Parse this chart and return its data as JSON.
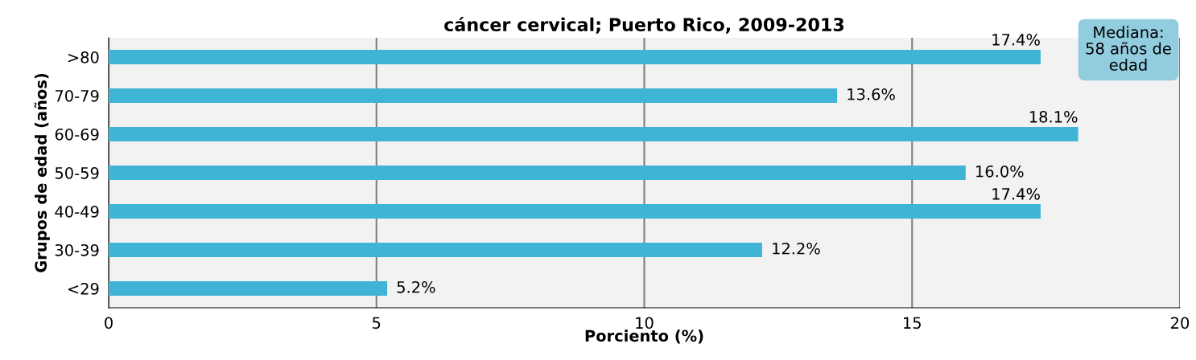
{
  "chart_data": {
    "type": "bar",
    "orientation": "horizontal",
    "title": "cáncer cervical; Puerto Rico, 2009-2013",
    "xlabel": "Porciento (%)",
    "ylabel": "Grupos de edad (años)",
    "categories": [
      ">80",
      "70-79",
      "60-69",
      "50-59",
      "40-49",
      "30-39",
      "<29"
    ],
    "values": [
      17.4,
      13.6,
      18.1,
      16.0,
      17.4,
      12.2,
      5.2
    ],
    "value_labels": [
      "17.4%",
      "13.6%",
      "18.1%",
      "16.0%",
      "17.4%",
      "12.2%",
      "5.2%"
    ],
    "color": "#3fb4d4",
    "xlim": [
      0,
      20
    ],
    "xticks": [
      0,
      5,
      10,
      15,
      20
    ],
    "grid": "x",
    "annotations": [
      "Mediana:\n58 años de\nedad"
    ]
  }
}
